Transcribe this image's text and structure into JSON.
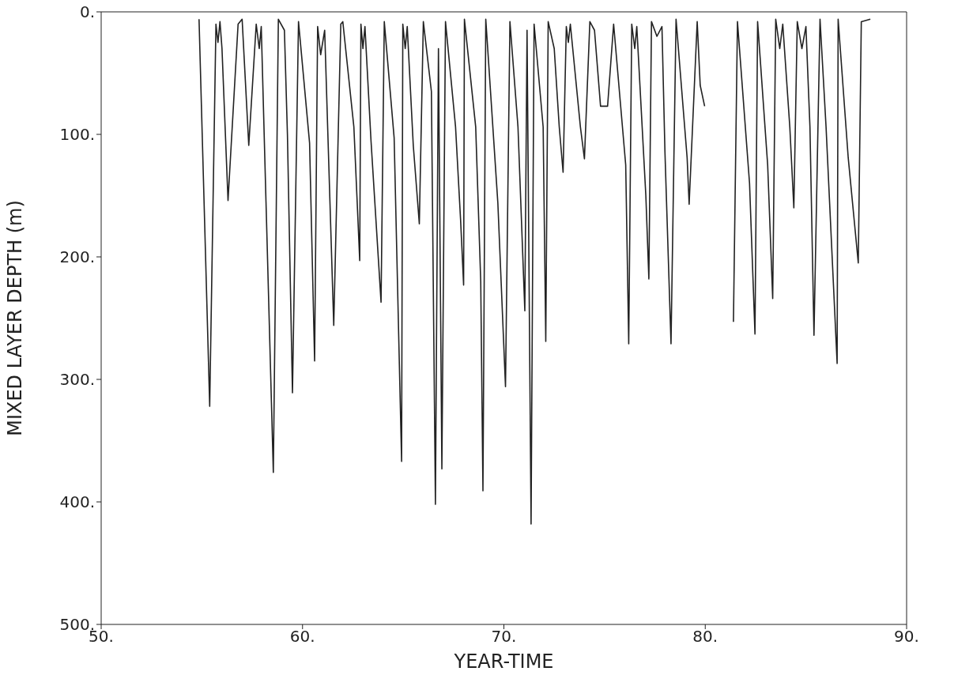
{
  "chart_data": {
    "type": "line",
    "xlabel": "YEAR-TIME",
    "ylabel": "MIXED LAYER DEPTH (m)",
    "xlim": [
      50,
      90
    ],
    "xticks": [
      {
        "value": 50,
        "label": "50."
      },
      {
        "value": 60,
        "label": "60."
      },
      {
        "value": 70,
        "label": "70."
      },
      {
        "value": 80,
        "label": "80."
      },
      {
        "value": 90,
        "label": "90."
      }
    ],
    "ylim": [
      500,
      0
    ],
    "yticks": [
      {
        "value": 0,
        "label": "0."
      },
      {
        "value": 100,
        "label": "100."
      },
      {
        "value": 200,
        "label": "200."
      },
      {
        "value": 300,
        "label": "300."
      },
      {
        "value": 400,
        "label": "400."
      },
      {
        "value": 500,
        "label": "500."
      }
    ],
    "marker": "none",
    "line_style": "solid",
    "series": [
      {
        "color": "#222222",
        "x": [
          54.86,
          55.39,
          55.7,
          55.8,
          55.9,
          56.0,
          56.3,
          56.8,
          57.0,
          57.33,
          57.7,
          57.85,
          57.95,
          58.55,
          58.8,
          59.1,
          59.25,
          59.5,
          59.8,
          60.35,
          60.6,
          60.75,
          60.9,
          61.1,
          61.55,
          61.9,
          62.0,
          62.55,
          62.7,
          62.84,
          62.9,
          63.0,
          63.1,
          63.4,
          63.9,
          64.06,
          64.55,
          64.92,
          64.98,
          65.1,
          65.2,
          65.5,
          65.8,
          66.0,
          66.4,
          66.6,
          66.75,
          66.92,
          67.1,
          67.6,
          67.85,
          68.0,
          68.04,
          68.6,
          68.85,
          68.96,
          69.1,
          69.7,
          70.08,
          70.3,
          70.7,
          71.04,
          71.15,
          71.35,
          71.5,
          71.95,
          72.08,
          72.2,
          72.5,
          72.75,
          72.94,
          73.1,
          73.2,
          73.3,
          73.8,
          74.0,
          74.27,
          74.5,
          74.8,
          75.15,
          75.45,
          76.05,
          76.2,
          76.35,
          76.5,
          76.6,
          77.05,
          77.2,
          77.33,
          77.6,
          77.85,
          78.0,
          78.3,
          78.55,
          79.1,
          79.2,
          79.6,
          79.75,
          79.97,
          80.5,
          81.4,
          81.6,
          82.2,
          82.47,
          82.6,
          83.1,
          83.35,
          83.5,
          83.7,
          83.85,
          84.2,
          84.4,
          84.57,
          84.8,
          85.0,
          85.2,
          85.4,
          85.7,
          86.0,
          86.55,
          86.6,
          87.1,
          87.6,
          87.75,
          88.2
        ],
        "values": [
          6,
          322,
          10,
          25,
          8,
          30,
          154,
          10,
          6,
          109,
          10,
          30,
          12,
          376,
          6,
          15,
          100,
          311,
          8,
          107,
          285,
          12,
          35,
          15,
          256,
          10,
          8,
          94,
          150,
          203,
          10,
          30,
          12,
          105,
          237,
          8,
          103,
          367,
          10,
          30,
          12,
          109,
          173,
          8,
          65,
          402,
          30,
          373,
          8,
          94,
          170,
          223,
          6,
          94,
          220,
          391,
          6,
          156,
          306,
          8,
          94,
          244,
          15,
          418,
          10,
          94,
          269,
          8,
          30,
          94,
          131,
          12,
          25,
          10,
          94,
          120,
          8,
          15,
          77,
          77,
          10,
          125,
          271,
          10,
          30,
          12,
          150,
          218,
          8,
          20,
          12,
          115,
          271,
          6,
          119,
          157,
          8,
          60,
          77,
          null,
          253,
          8,
          140,
          263,
          8,
          125,
          234,
          6,
          30,
          10,
          94,
          160,
          8,
          30,
          12,
          94,
          264,
          6,
          94,
          287,
          6,
          119,
          205,
          8,
          6
        ]
      }
    ]
  }
}
